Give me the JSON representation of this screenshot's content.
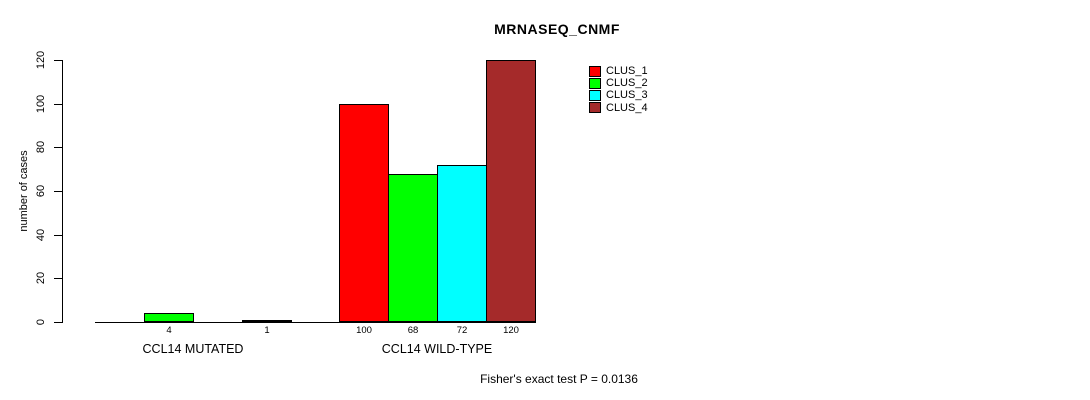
{
  "title": "MRNASEQ_CNMF",
  "chart_data": {
    "type": "bar",
    "title": "MRNASEQ_CNMF",
    "ylabel": "number of cases",
    "xlabel": "",
    "groups": [
      "CCL14 MUTATED",
      "CCL14 WILD-TYPE"
    ],
    "series": [
      {
        "name": "CLUS_1",
        "color": "#ff0000",
        "values": [
          0,
          100
        ]
      },
      {
        "name": "CLUS_2",
        "color": "#00ff00",
        "values": [
          4,
          68
        ]
      },
      {
        "name": "CLUS_3",
        "color": "#00ffff",
        "values": [
          0,
          72
        ]
      },
      {
        "name": "CLUS_4",
        "color": "#a52a2a",
        "values": [
          1,
          120
        ]
      }
    ],
    "yticks": [
      0,
      20,
      40,
      60,
      80,
      100,
      120
    ],
    "ylim": [
      0,
      120
    ],
    "grid": false,
    "legend_position": "top-right",
    "bar_value_labels_shown": true,
    "annotation": "Fisher's exact test P = 0.0136"
  }
}
